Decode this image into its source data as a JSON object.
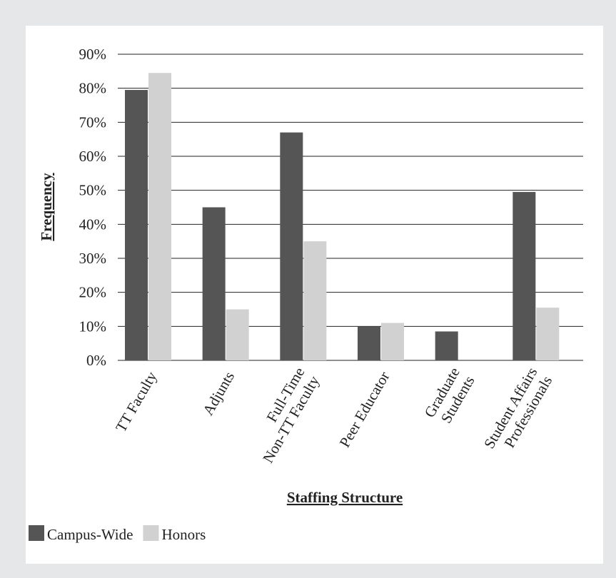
{
  "chart_data": {
    "type": "bar",
    "categories": [
      "TT Faculty",
      "Adjunts",
      "Full-Time\nNon-TT Faculty",
      "Peer Educator",
      "Graduate\nStudents",
      "Student Affairs\nProfessionals"
    ],
    "series": [
      {
        "name": "Campus-Wide",
        "color": "#555555",
        "values": [
          79.5,
          45,
          67,
          10,
          8.5,
          49.5
        ]
      },
      {
        "name": "Honors",
        "color": "#d1d1d1",
        "values": [
          84.5,
          15,
          35,
          11,
          0,
          15.5
        ]
      }
    ],
    "x_label": "Staffing Structure",
    "y_label": "Frequency",
    "ylim": [
      0,
      90
    ],
    "yticks": [
      {
        "value": 0,
        "label": "0%"
      },
      {
        "value": 10,
        "label": "10%"
      },
      {
        "value": 20,
        "label": "20%"
      },
      {
        "value": 30,
        "label": "30%"
      },
      {
        "value": 40,
        "label": "40%"
      },
      {
        "value": 50,
        "label": "50%"
      },
      {
        "value": 60,
        "label": "60%"
      },
      {
        "value": 70,
        "label": "70%"
      },
      {
        "value": 80,
        "label": "80%"
      },
      {
        "value": 90,
        "label": "90%"
      }
    ],
    "grid": true,
    "legend": "bottom-left"
  }
}
